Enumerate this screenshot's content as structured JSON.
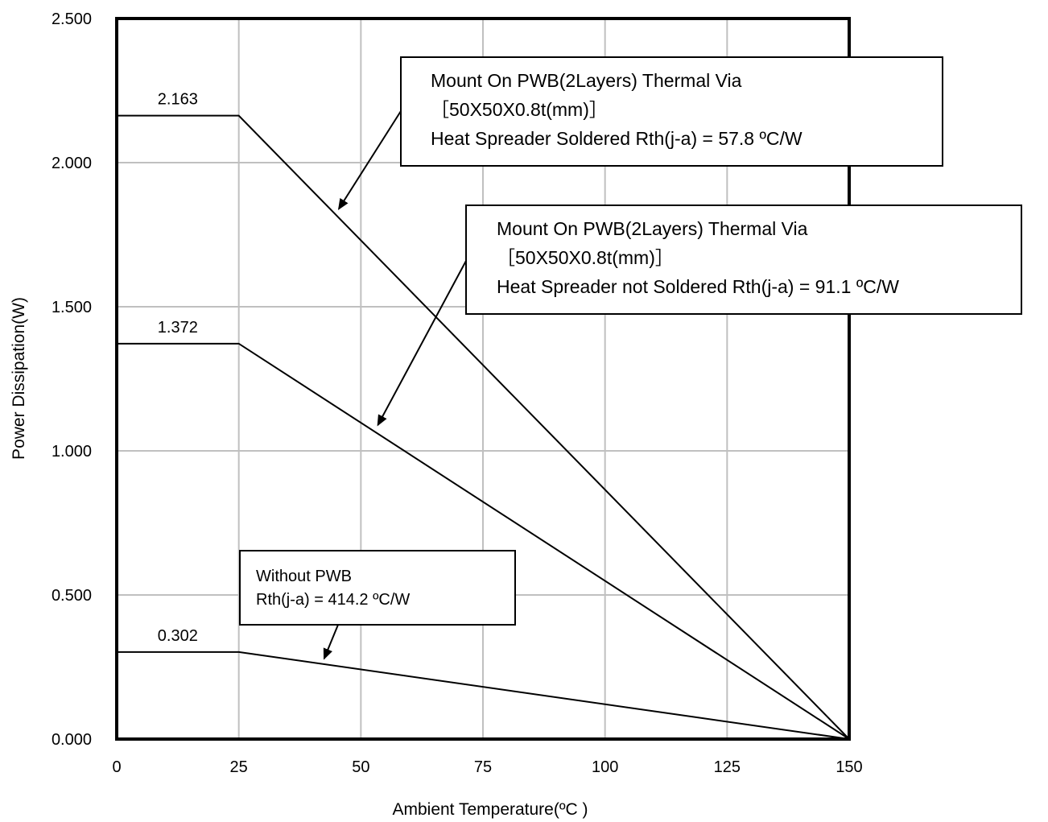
{
  "chart_data": {
    "type": "line",
    "xlabel": "Ambient Temperature(ºC )",
    "ylabel": "Power Dissipation(W)",
    "xlim": [
      0,
      150
    ],
    "ylim": [
      0,
      2.5
    ],
    "xticks": [
      "0",
      "25",
      "50",
      "75",
      "100",
      "125",
      "150"
    ],
    "yticks": [
      "0.000",
      "0.500",
      "1.000",
      "1.500",
      "2.000",
      "2.500"
    ],
    "grid": true,
    "series": [
      {
        "x": [
          0,
          25,
          150
        ],
        "y": [
          2.163,
          2.163,
          0
        ],
        "label": "2.163"
      },
      {
        "x": [
          0,
          25,
          150
        ],
        "y": [
          1.372,
          1.372,
          0
        ],
        "label": "1.372"
      },
      {
        "x": [
          0,
          25,
          150
        ],
        "y": [
          0.302,
          0.302,
          0
        ],
        "label": "0.302"
      }
    ],
    "annotations": [
      {
        "lines": [
          "Mount On PWB(2Layers) Thermal Via",
          "［50X50X0.8t(mm)］",
          "Heat Spreader Soldered  Rth(j-a) = 57.8 ºC/W"
        ],
        "points_to": {
          "x": 45.5,
          "y": 1.84
        }
      },
      {
        "lines": [
          "Mount On PWB(2Layers) Thermal Via",
          "［50X50X0.8t(mm)］",
          "Heat Spreader not Soldered  Rth(j-a) = 91.1 ºC/W"
        ],
        "points_to": {
          "x": 53.5,
          "y": 1.09
        }
      },
      {
        "lines": [
          "Without PWB",
          "Rth(j-a) = 414.2 ºC/W"
        ],
        "points_to": {
          "x": 42.5,
          "y": 0.28
        }
      }
    ]
  }
}
